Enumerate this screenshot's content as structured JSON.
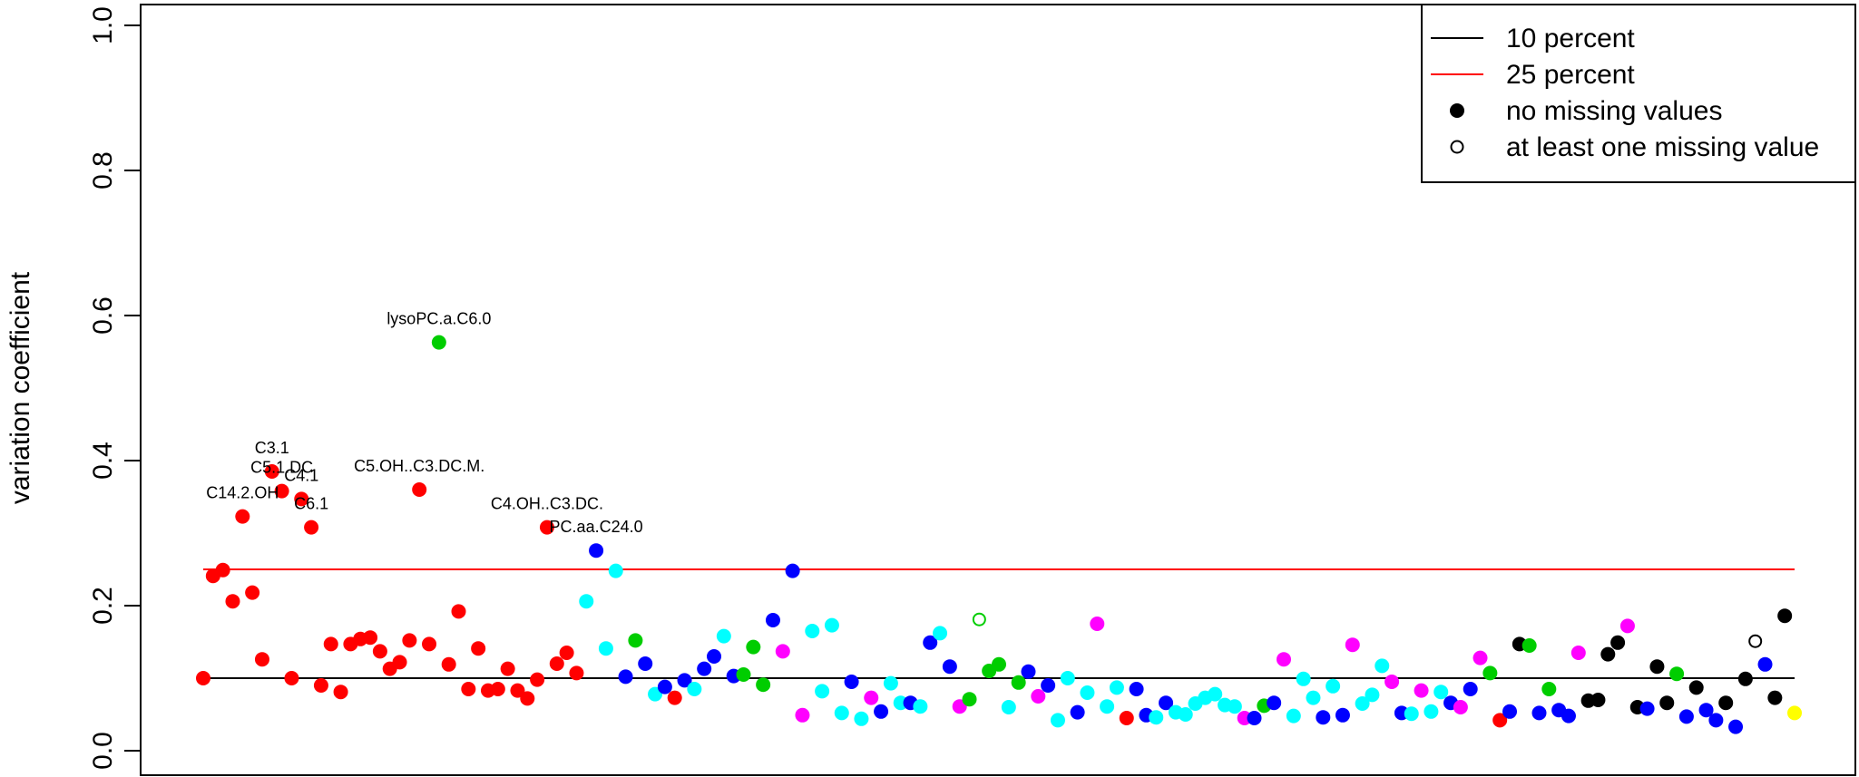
{
  "chart_data": {
    "type": "scatter",
    "title": "",
    "xlabel": "",
    "ylabel": "variation coefficient",
    "ylim": [
      0,
      1.0
    ],
    "yticks": [
      "0.0",
      "0.2",
      "0.4",
      "0.6",
      "0.8",
      "1.0"
    ],
    "x_axis_shown": false,
    "grid": false,
    "legend_position": "top-right",
    "reference_lines": [
      {
        "name": "10 percent",
        "y": 0.1,
        "color": "#000000"
      },
      {
        "name": "25 percent",
        "y": 0.25,
        "color": "#ff0000"
      }
    ],
    "legend": [
      {
        "label": "10 percent",
        "symbol": "line",
        "color": "#000000"
      },
      {
        "label": "25 percent",
        "symbol": "line",
        "color": "#ff0000"
      },
      {
        "label": "no missing values",
        "symbol": "filled-circle",
        "color": "#000000"
      },
      {
        "label": "at least one missing value",
        "symbol": "open-circle",
        "color": "#000000"
      }
    ],
    "colors": {
      "r": "#ff0000",
      "g": "#00cd00",
      "b": "#0000ff",
      "c": "#00ffff",
      "m": "#ff00ff",
      "k": "#000000",
      "y": "#ffff00"
    },
    "points": [
      {
        "x": 1,
        "y": 0.1,
        "c": "r"
      },
      {
        "x": 2,
        "y": 0.241,
        "c": "r"
      },
      {
        "x": 3,
        "y": 0.249,
        "c": "r"
      },
      {
        "x": 4,
        "y": 0.206,
        "c": "r"
      },
      {
        "x": 5,
        "y": 0.323,
        "c": "r",
        "label": "C14.2.OH"
      },
      {
        "x": 6,
        "y": 0.218,
        "c": "r"
      },
      {
        "x": 7,
        "y": 0.126,
        "c": "r"
      },
      {
        "x": 8,
        "y": 0.385,
        "c": "r",
        "label": "C3.1"
      },
      {
        "x": 9,
        "y": 0.358,
        "c": "r",
        "label": "C5.1.DC"
      },
      {
        "x": 10,
        "y": 0.1,
        "c": "r"
      },
      {
        "x": 11,
        "y": 0.347,
        "c": "r",
        "label": "C4.1"
      },
      {
        "x": 12,
        "y": 0.308,
        "c": "r",
        "label": "C6.1"
      },
      {
        "x": 13,
        "y": 0.09,
        "c": "r"
      },
      {
        "x": 14,
        "y": 0.147,
        "c": "r"
      },
      {
        "x": 15,
        "y": 0.081,
        "c": "r"
      },
      {
        "x": 16,
        "y": 0.147,
        "c": "r"
      },
      {
        "x": 17,
        "y": 0.154,
        "c": "r"
      },
      {
        "x": 18,
        "y": 0.156,
        "c": "r"
      },
      {
        "x": 19,
        "y": 0.137,
        "c": "r"
      },
      {
        "x": 20,
        "y": 0.113,
        "c": "r"
      },
      {
        "x": 21,
        "y": 0.122,
        "c": "r"
      },
      {
        "x": 22,
        "y": 0.152,
        "c": "r"
      },
      {
        "x": 23,
        "y": 0.36,
        "c": "r",
        "label": "C5.OH..C3.DC.M."
      },
      {
        "x": 24,
        "y": 0.147,
        "c": "r"
      },
      {
        "x": 25,
        "y": 0.563,
        "c": "g",
        "label": "lysoPC.a.C6.0"
      },
      {
        "x": 26,
        "y": 0.119,
        "c": "r"
      },
      {
        "x": 27,
        "y": 0.192,
        "c": "r"
      },
      {
        "x": 28,
        "y": 0.085,
        "c": "r"
      },
      {
        "x": 29,
        "y": 0.141,
        "c": "r"
      },
      {
        "x": 30,
        "y": 0.083,
        "c": "r"
      },
      {
        "x": 31,
        "y": 0.085,
        "c": "r"
      },
      {
        "x": 32,
        "y": 0.113,
        "c": "r"
      },
      {
        "x": 33,
        "y": 0.083,
        "c": "r"
      },
      {
        "x": 34,
        "y": 0.072,
        "c": "r"
      },
      {
        "x": 35,
        "y": 0.098,
        "c": "r"
      },
      {
        "x": 36,
        "y": 0.308,
        "c": "r",
        "label": "C4.OH..C3.DC."
      },
      {
        "x": 37,
        "y": 0.12,
        "c": "r"
      },
      {
        "x": 38,
        "y": 0.135,
        "c": "r"
      },
      {
        "x": 39,
        "y": 0.107,
        "c": "r"
      },
      {
        "x": 40,
        "y": 0.206,
        "c": "c"
      },
      {
        "x": 41,
        "y": 0.276,
        "c": "b",
        "label": "PC.aa.C24.0"
      },
      {
        "x": 42,
        "y": 0.141,
        "c": "c"
      },
      {
        "x": 43,
        "y": 0.248,
        "c": "c"
      },
      {
        "x": 44,
        "y": 0.102,
        "c": "b"
      },
      {
        "x": 45,
        "y": 0.152,
        "c": "g"
      },
      {
        "x": 46,
        "y": 0.12,
        "c": "b"
      },
      {
        "x": 47,
        "y": 0.078,
        "c": "c"
      },
      {
        "x": 48,
        "y": 0.088,
        "c": "b"
      },
      {
        "x": 49,
        "y": 0.073,
        "c": "r"
      },
      {
        "x": 50,
        "y": 0.097,
        "c": "b"
      },
      {
        "x": 51,
        "y": 0.085,
        "c": "c"
      },
      {
        "x": 52,
        "y": 0.113,
        "c": "b"
      },
      {
        "x": 53,
        "y": 0.13,
        "c": "b"
      },
      {
        "x": 54,
        "y": 0.158,
        "c": "c"
      },
      {
        "x": 55,
        "y": 0.103,
        "c": "b"
      },
      {
        "x": 56,
        "y": 0.105,
        "c": "g"
      },
      {
        "x": 57,
        "y": 0.143,
        "c": "g"
      },
      {
        "x": 58,
        "y": 0.091,
        "c": "g"
      },
      {
        "x": 59,
        "y": 0.18,
        "c": "b"
      },
      {
        "x": 60,
        "y": 0.137,
        "c": "m"
      },
      {
        "x": 61,
        "y": 0.248,
        "c": "b"
      },
      {
        "x": 62,
        "y": 0.049,
        "c": "m"
      },
      {
        "x": 63,
        "y": 0.165,
        "c": "c"
      },
      {
        "x": 64,
        "y": 0.082,
        "c": "c"
      },
      {
        "x": 65,
        "y": 0.173,
        "c": "c"
      },
      {
        "x": 66,
        "y": 0.052,
        "c": "c"
      },
      {
        "x": 67,
        "y": 0.095,
        "c": "b"
      },
      {
        "x": 68,
        "y": 0.044,
        "c": "c"
      },
      {
        "x": 69,
        "y": 0.073,
        "c": "m"
      },
      {
        "x": 70,
        "y": 0.054,
        "c": "b"
      },
      {
        "x": 71,
        "y": 0.093,
        "c": "c"
      },
      {
        "x": 72,
        "y": 0.066,
        "c": "c"
      },
      {
        "x": 73,
        "y": 0.066,
        "c": "b"
      },
      {
        "x": 74,
        "y": 0.061,
        "c": "c"
      },
      {
        "x": 75,
        "y": 0.149,
        "c": "b"
      },
      {
        "x": 76,
        "y": 0.162,
        "c": "c"
      },
      {
        "x": 77,
        "y": 0.116,
        "c": "b"
      },
      {
        "x": 78,
        "y": 0.061,
        "c": "m"
      },
      {
        "x": 79,
        "y": 0.071,
        "c": "g"
      },
      {
        "x": 80,
        "y": 0.181,
        "c": "g",
        "open": true
      },
      {
        "x": 81,
        "y": 0.11,
        "c": "g"
      },
      {
        "x": 82,
        "y": 0.119,
        "c": "g"
      },
      {
        "x": 83,
        "y": 0.06,
        "c": "c"
      },
      {
        "x": 84,
        "y": 0.094,
        "c": "g"
      },
      {
        "x": 85,
        "y": 0.109,
        "c": "b"
      },
      {
        "x": 86,
        "y": 0.075,
        "c": "m"
      },
      {
        "x": 87,
        "y": 0.09,
        "c": "b"
      },
      {
        "x": 88,
        "y": 0.042,
        "c": "c"
      },
      {
        "x": 89,
        "y": 0.1,
        "c": "c"
      },
      {
        "x": 90,
        "y": 0.053,
        "c": "b"
      },
      {
        "x": 91,
        "y": 0.08,
        "c": "c"
      },
      {
        "x": 92,
        "y": 0.175,
        "c": "m"
      },
      {
        "x": 93,
        "y": 0.061,
        "c": "c"
      },
      {
        "x": 94,
        "y": 0.087,
        "c": "c"
      },
      {
        "x": 95,
        "y": 0.045,
        "c": "r"
      },
      {
        "x": 96,
        "y": 0.085,
        "c": "b"
      },
      {
        "x": 97,
        "y": 0.049,
        "c": "b"
      },
      {
        "x": 98,
        "y": 0.046,
        "c": "c"
      },
      {
        "x": 99,
        "y": 0.066,
        "c": "b"
      },
      {
        "x": 100,
        "y": 0.053,
        "c": "c"
      },
      {
        "x": 101,
        "y": 0.05,
        "c": "c"
      },
      {
        "x": 102,
        "y": 0.065,
        "c": "c"
      },
      {
        "x": 103,
        "y": 0.073,
        "c": "c"
      },
      {
        "x": 104,
        "y": 0.078,
        "c": "c"
      },
      {
        "x": 105,
        "y": 0.063,
        "c": "c"
      },
      {
        "x": 106,
        "y": 0.061,
        "c": "c"
      },
      {
        "x": 107,
        "y": 0.045,
        "c": "m"
      },
      {
        "x": 108,
        "y": 0.045,
        "c": "b"
      },
      {
        "x": 109,
        "y": 0.062,
        "c": "g"
      },
      {
        "x": 110,
        "y": 0.066,
        "c": "b"
      },
      {
        "x": 111,
        "y": 0.126,
        "c": "m"
      },
      {
        "x": 112,
        "y": 0.048,
        "c": "c"
      },
      {
        "x": 113,
        "y": 0.099,
        "c": "c"
      },
      {
        "x": 114,
        "y": 0.073,
        "c": "c"
      },
      {
        "x": 115,
        "y": 0.046,
        "c": "b"
      },
      {
        "x": 116,
        "y": 0.089,
        "c": "c"
      },
      {
        "x": 117,
        "y": 0.049,
        "c": "b"
      },
      {
        "x": 118,
        "y": 0.146,
        "c": "m"
      },
      {
        "x": 119,
        "y": 0.065,
        "c": "c"
      },
      {
        "x": 120,
        "y": 0.077,
        "c": "c"
      },
      {
        "x": 121,
        "y": 0.117,
        "c": "c"
      },
      {
        "x": 122,
        "y": 0.095,
        "c": "m"
      },
      {
        "x": 123,
        "y": 0.052,
        "c": "b"
      },
      {
        "x": 124,
        "y": 0.051,
        "c": "c"
      },
      {
        "x": 125,
        "y": 0.083,
        "c": "m"
      },
      {
        "x": 126,
        "y": 0.054,
        "c": "c"
      },
      {
        "x": 127,
        "y": 0.081,
        "c": "c"
      },
      {
        "x": 128,
        "y": 0.066,
        "c": "b"
      },
      {
        "x": 129,
        "y": 0.06,
        "c": "m"
      },
      {
        "x": 130,
        "y": 0.085,
        "c": "b"
      },
      {
        "x": 131,
        "y": 0.128,
        "c": "m"
      },
      {
        "x": 132,
        "y": 0.107,
        "c": "g"
      },
      {
        "x": 133,
        "y": 0.042,
        "c": "r"
      },
      {
        "x": 134,
        "y": 0.054,
        "c": "b"
      },
      {
        "x": 135,
        "y": 0.147,
        "c": "k"
      },
      {
        "x": 136,
        "y": 0.145,
        "c": "g"
      },
      {
        "x": 137,
        "y": 0.052,
        "c": "b"
      },
      {
        "x": 138,
        "y": 0.085,
        "c": "g"
      },
      {
        "x": 139,
        "y": 0.056,
        "c": "b"
      },
      {
        "x": 140,
        "y": 0.048,
        "c": "b"
      },
      {
        "x": 141,
        "y": 0.135,
        "c": "m"
      },
      {
        "x": 142,
        "y": 0.069,
        "c": "k"
      },
      {
        "x": 143,
        "y": 0.07,
        "c": "k"
      },
      {
        "x": 144,
        "y": 0.133,
        "c": "k"
      },
      {
        "x": 145,
        "y": 0.149,
        "c": "k"
      },
      {
        "x": 146,
        "y": 0.172,
        "c": "m"
      },
      {
        "x": 147,
        "y": 0.06,
        "c": "k"
      },
      {
        "x": 148,
        "y": 0.058,
        "c": "b"
      },
      {
        "x": 149,
        "y": 0.116,
        "c": "k"
      },
      {
        "x": 150,
        "y": 0.066,
        "c": "k"
      },
      {
        "x": 151,
        "y": 0.106,
        "c": "g"
      },
      {
        "x": 152,
        "y": 0.047,
        "c": "b"
      },
      {
        "x": 153,
        "y": 0.087,
        "c": "k"
      },
      {
        "x": 154,
        "y": 0.056,
        "c": "b"
      },
      {
        "x": 155,
        "y": 0.042,
        "c": "b"
      },
      {
        "x": 156,
        "y": 0.066,
        "c": "k"
      },
      {
        "x": 157,
        "y": 0.033,
        "c": "b"
      },
      {
        "x": 158,
        "y": 0.099,
        "c": "k"
      },
      {
        "x": 159,
        "y": 0.151,
        "c": "k",
        "open": true
      },
      {
        "x": 160,
        "y": 0.119,
        "c": "b"
      },
      {
        "x": 161,
        "y": 0.073,
        "c": "k"
      },
      {
        "x": 162,
        "y": 0.186,
        "c": "k"
      },
      {
        "x": 163,
        "y": 0.052,
        "c": "y"
      }
    ]
  }
}
